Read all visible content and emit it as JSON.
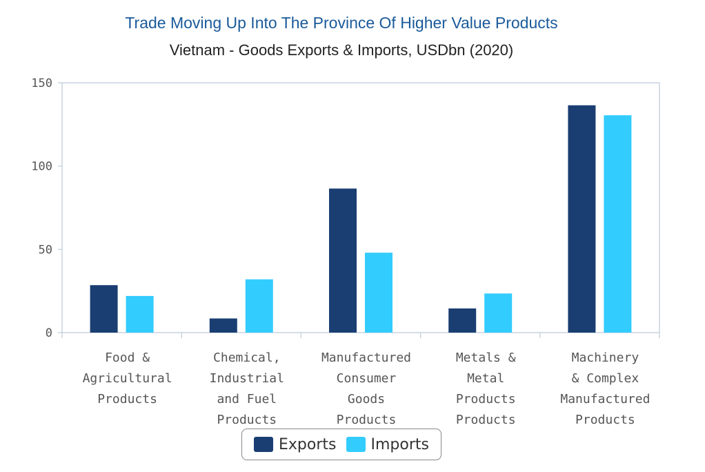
{
  "chart_data": {
    "type": "bar",
    "title": "Trade Moving Up Into The Province Of Higher Value Products",
    "subtitle": "Vietnam - Goods Exports & Imports, USDbn (2020)",
    "categories": [
      [
        "Food &",
        "Agricultural",
        "Products"
      ],
      [
        "Chemical,",
        "Industrial",
        "and Fuel",
        "Products"
      ],
      [
        "Manufactured",
        "Consumer",
        "Goods",
        "Products"
      ],
      [
        "Metals &",
        "Metal",
        "Products",
        "Products"
      ],
      [
        "Machinery",
        "& Complex",
        "Manufactured",
        "Products"
      ]
    ],
    "series": [
      {
        "name": "Exports",
        "color": "#1a3e72",
        "values": [
          28.5,
          8.5,
          86.5,
          14.5,
          136.5
        ]
      },
      {
        "name": "Imports",
        "color": "#33ccff",
        "values": [
          22,
          32,
          48,
          23.5,
          130.5
        ]
      }
    ],
    "ylim": [
      0,
      150
    ],
    "yticks": [
      "0",
      "50",
      "100",
      "150"
    ],
    "legend_position": "bottom",
    "grid": false
  }
}
